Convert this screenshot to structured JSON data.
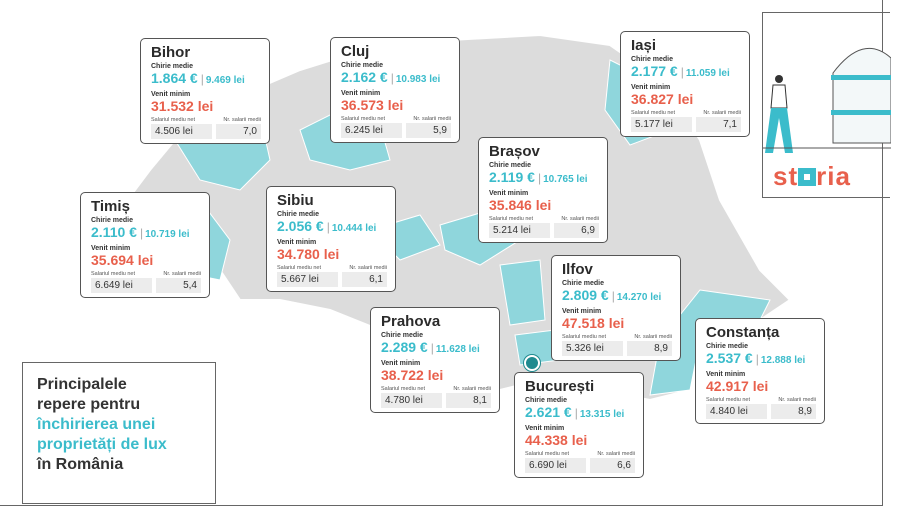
{
  "labels": {
    "rent": "Chirie medie",
    "income": "Venit minim",
    "salary": "Salariul mediu net",
    "count": "Nr. salarii medii",
    "sep": "|"
  },
  "title": {
    "line1": "Principalele",
    "line2": "repere pentru",
    "line3": "închirierea unei",
    "line4": "proprietăți de lux",
    "line5": "în România"
  },
  "brand": {
    "logo_text": "storia",
    "accent": "#3bbccb",
    "secondary": "#e8604c"
  },
  "regions": [
    {
      "name": "Bihor",
      "eur": "1.864 €",
      "lei": "9.469 lei",
      "income": "31.532 lei",
      "salary": "4.506 lei",
      "count": "7,0"
    },
    {
      "name": "Cluj",
      "eur": "2.162 €",
      "lei": "10.983 lei",
      "income": "36.573 lei",
      "salary": "6.245 lei",
      "count": "5,9"
    },
    {
      "name": "Iași",
      "eur": "2.177 €",
      "lei": "11.059 lei",
      "income": "36.827 lei",
      "salary": "5.177 lei",
      "count": "7,1"
    },
    {
      "name": "Brașov",
      "eur": "2.119 €",
      "lei": "10.765 lei",
      "income": "35.846 lei",
      "salary": "5.214 lei",
      "count": "6,9"
    },
    {
      "name": "Timiș",
      "eur": "2.110 €",
      "lei": "10.719 lei",
      "income": "35.694 lei",
      "salary": "6.649 lei",
      "count": "5,4"
    },
    {
      "name": "Sibiu",
      "eur": "2.056 €",
      "lei": "10.444 lei",
      "income": "34.780 lei",
      "salary": "5.667 lei",
      "count": "6,1"
    },
    {
      "name": "Ilfov",
      "eur": "2.809 €",
      "lei": "14.270 lei",
      "income": "47.518 lei",
      "salary": "5.326 lei",
      "count": "8,9"
    },
    {
      "name": "Prahova",
      "eur": "2.289 €",
      "lei": "11.628 lei",
      "income": "38.722 lei",
      "salary": "4.780 lei",
      "count": "8,1"
    },
    {
      "name": "Constanța",
      "eur": "2.537 €",
      "lei": "12.888 lei",
      "income": "42.917 lei",
      "salary": "4.840 lei",
      "count": "8,9"
    },
    {
      "name": "București",
      "eur": "2.621 €",
      "lei": "13.315 lei",
      "income": "44.338 lei",
      "salary": "6.690 lei",
      "count": "6,6"
    }
  ]
}
